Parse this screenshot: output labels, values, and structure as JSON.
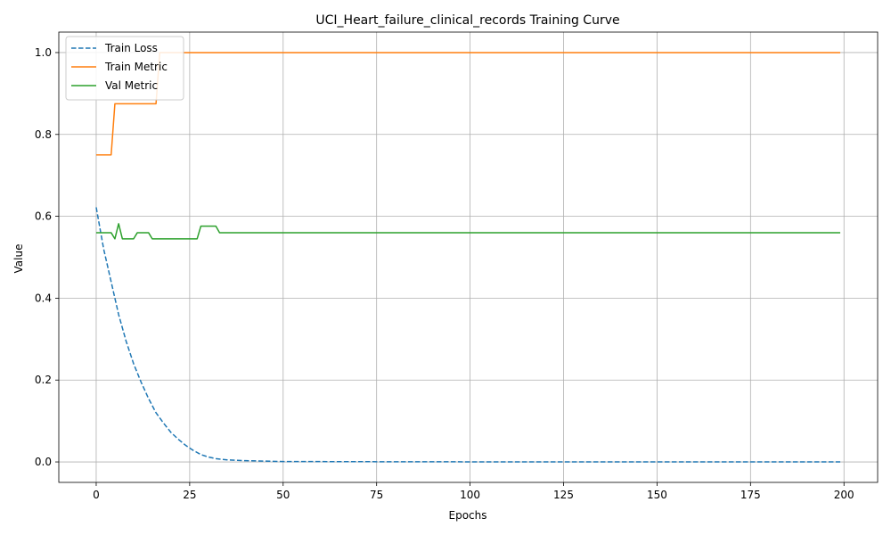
{
  "chart_data": {
    "type": "line",
    "title": "UCI_Heart_failure_clinical_records Training Curve",
    "xlabel": "Epochs",
    "ylabel": "Value",
    "xlim": [
      -10,
      209
    ],
    "ylim": [
      -0.05,
      1.05
    ],
    "x_ticks": [
      0,
      25,
      50,
      75,
      100,
      125,
      150,
      175,
      200
    ],
    "y_ticks": [
      0.0,
      0.2,
      0.4,
      0.6,
      0.8,
      1.0
    ],
    "grid": true,
    "legend_position": "top-left",
    "series": [
      {
        "name": "Train Loss",
        "color": "#1f77b4",
        "style": "dashed",
        "points": [
          [
            0,
            0.622
          ],
          [
            2,
            0.52
          ],
          [
            4,
            0.44
          ],
          [
            6,
            0.36
          ],
          [
            8,
            0.295
          ],
          [
            10,
            0.24
          ],
          [
            12,
            0.195
          ],
          [
            14,
            0.155
          ],
          [
            16,
            0.12
          ],
          [
            18,
            0.095
          ],
          [
            20,
            0.072
          ],
          [
            22,
            0.055
          ],
          [
            24,
            0.04
          ],
          [
            26,
            0.028
          ],
          [
            28,
            0.018
          ],
          [
            30,
            0.012
          ],
          [
            32,
            0.008
          ],
          [
            35,
            0.005
          ],
          [
            40,
            0.003
          ],
          [
            50,
            0.001
          ],
          [
            75,
            0.0005
          ],
          [
            100,
            0.0002
          ],
          [
            150,
            0.0001
          ],
          [
            199,
            0.0
          ]
        ]
      },
      {
        "name": "Train Metric",
        "color": "#ff7f0e",
        "style": "solid",
        "points": [
          [
            0,
            0.75
          ],
          [
            4,
            0.75
          ],
          [
            5,
            0.875
          ],
          [
            16,
            0.875
          ],
          [
            17,
            1.0
          ],
          [
            199,
            1.0
          ]
        ]
      },
      {
        "name": "Val Metric",
        "color": "#2ca02c",
        "style": "solid",
        "points": [
          [
            0,
            0.56
          ],
          [
            4,
            0.56
          ],
          [
            5,
            0.545
          ],
          [
            6,
            0.582
          ],
          [
            7,
            0.545
          ],
          [
            10,
            0.545
          ],
          [
            11,
            0.56
          ],
          [
            14,
            0.56
          ],
          [
            15,
            0.545
          ],
          [
            27,
            0.545
          ],
          [
            28,
            0.576
          ],
          [
            32,
            0.576
          ],
          [
            33,
            0.56
          ],
          [
            199,
            0.56
          ]
        ]
      }
    ]
  }
}
